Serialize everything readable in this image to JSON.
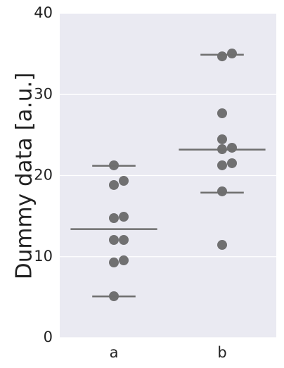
{
  "chart_data": {
    "type": "strip",
    "ylabel": "Dummy data [a.u.]",
    "categories": [
      "a",
      "b"
    ],
    "groups": [
      {
        "values": [
          21.26,
          18.83,
          19.35,
          14.75,
          14.92,
          12.06,
          12.06,
          9.28,
          9.54,
          5.12
        ],
        "mean": 13.4,
        "upper": 21.2,
        "lower": 5.1
      },
      {
        "values": [
          34.7,
          35.05,
          27.68,
          24.47,
          23.25,
          23.43,
          21.26,
          21.52,
          18.05,
          11.45
        ],
        "mean": 23.2,
        "upper": 34.9,
        "lower": 17.9
      }
    ],
    "point_color": "#5a5a5a",
    "line_color": "#6e6e6e",
    "background": "#eaeaf2",
    "ylim": [
      0,
      40
    ],
    "yticks": [
      0,
      10,
      20,
      30,
      40
    ],
    "grid": true
  }
}
